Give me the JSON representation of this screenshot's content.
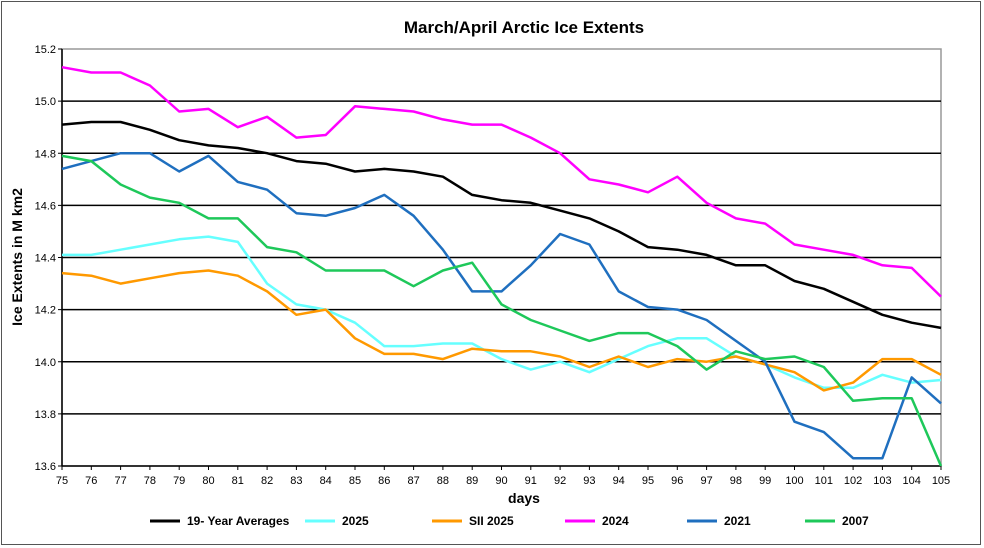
{
  "chart_data": {
    "type": "line",
    "title": "March/April Arctic Ice Extents",
    "xlabel": "days",
    "ylabel": "Ice Extents in M km2",
    "xlim": [
      75,
      105
    ],
    "ylim": [
      13.6,
      15.2
    ],
    "yticks": [
      "13.6",
      "13.8",
      "14.0",
      "14.2",
      "14.4",
      "14.6",
      "14.8",
      "15.0",
      "15.2"
    ],
    "grid": "horizontal",
    "legend_placement": "bottom",
    "x": [
      75,
      76,
      77,
      78,
      79,
      80,
      81,
      82,
      83,
      84,
      85,
      86,
      87,
      88,
      89,
      90,
      91,
      92,
      93,
      94,
      95,
      96,
      97,
      98,
      99,
      100,
      101,
      102,
      103,
      104,
      105
    ],
    "series": [
      {
        "name": "19- Year Averages",
        "color": "#000000",
        "values": [
          14.91,
          14.92,
          14.92,
          14.89,
          14.85,
          14.83,
          14.82,
          14.8,
          14.77,
          14.76,
          14.73,
          14.74,
          14.73,
          14.71,
          14.64,
          14.62,
          14.61,
          14.58,
          14.55,
          14.5,
          14.44,
          14.43,
          14.41,
          14.37,
          14.37,
          14.31,
          14.28,
          14.23,
          14.18,
          14.15,
          14.13
        ]
      },
      {
        "name": "2025",
        "color": "#66ffff",
        "values": [
          14.41,
          14.41,
          14.43,
          14.45,
          14.47,
          14.48,
          14.46,
          14.3,
          14.22,
          14.2,
          14.15,
          14.06,
          14.06,
          14.07,
          14.07,
          14.01,
          13.97,
          14.0,
          13.96,
          14.01,
          14.06,
          14.09,
          14.09,
          14.02,
          13.99,
          13.94,
          13.9,
          13.9,
          13.95,
          13.92,
          13.93
        ]
      },
      {
        "name": "SII 2025",
        "color": "#ff9900",
        "values": [
          14.34,
          14.33,
          14.3,
          14.32,
          14.34,
          14.35,
          14.33,
          14.27,
          14.18,
          14.2,
          14.09,
          14.03,
          14.03,
          14.01,
          14.05,
          14.04,
          14.04,
          14.02,
          13.98,
          14.02,
          13.98,
          14.01,
          14.0,
          14.02,
          13.99,
          13.96,
          13.89,
          13.92,
          14.01,
          14.01,
          13.95
        ]
      },
      {
        "name": "2024",
        "color": "#ff00ff",
        "values": [
          15.13,
          15.11,
          15.11,
          15.06,
          14.96,
          14.97,
          14.9,
          14.94,
          14.86,
          14.87,
          14.98,
          14.97,
          14.96,
          14.93,
          14.91,
          14.91,
          14.86,
          14.8,
          14.7,
          14.68,
          14.65,
          14.71,
          14.61,
          14.55,
          14.53,
          14.45,
          14.43,
          14.41,
          14.37,
          14.36,
          14.25
        ]
      },
      {
        "name": "2021",
        "color": "#1f6fbf",
        "values": [
          14.74,
          14.77,
          14.8,
          14.8,
          14.73,
          14.79,
          14.69,
          14.66,
          14.57,
          14.56,
          14.59,
          14.64,
          14.56,
          14.43,
          14.27,
          14.27,
          14.37,
          14.49,
          14.45,
          14.27,
          14.21,
          14.2,
          14.16,
          14.08,
          14.0,
          13.77,
          13.73,
          13.63,
          13.63,
          13.94,
          13.84
        ]
      },
      {
        "name": "2007",
        "color": "#1ec85a",
        "values": [
          14.79,
          14.77,
          14.68,
          14.63,
          14.61,
          14.55,
          14.55,
          14.44,
          14.42,
          14.35,
          14.35,
          14.35,
          14.29,
          14.35,
          14.38,
          14.22,
          14.16,
          14.12,
          14.08,
          14.11,
          14.11,
          14.06,
          13.97,
          14.04,
          14.01,
          14.02,
          13.98,
          13.85,
          13.86,
          13.86,
          13.6
        ]
      }
    ]
  }
}
